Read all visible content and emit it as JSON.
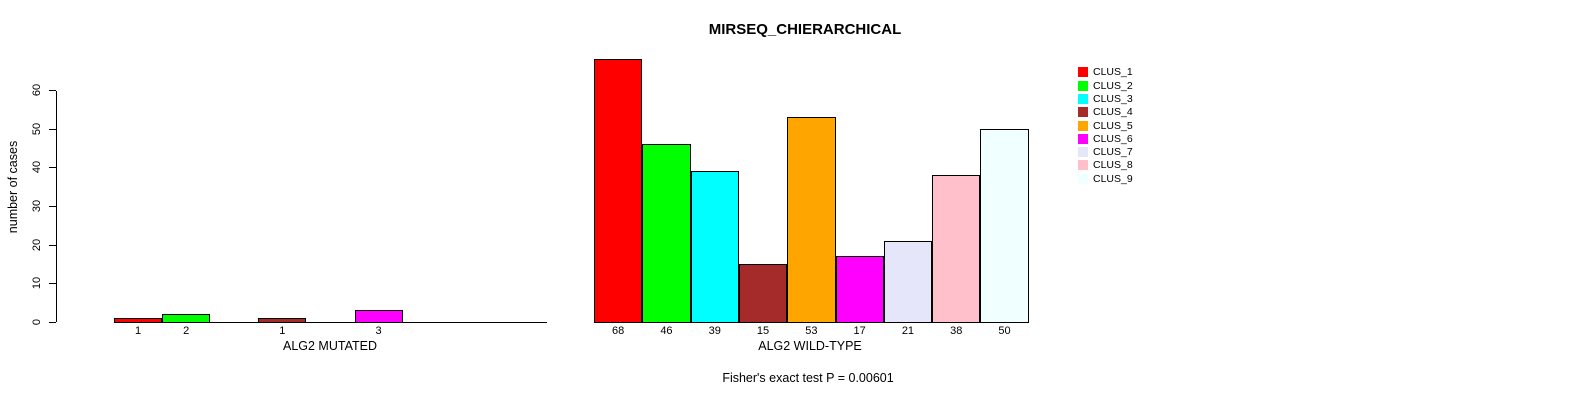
{
  "chart_data": {
    "type": "bar",
    "title": "MIRSEQ_CHIERARCHICAL",
    "ylabel": "number of cases",
    "annotation": "Fisher's exact test P = 0.00601",
    "yticks": [
      0,
      10,
      20,
      30,
      40,
      50,
      60
    ],
    "ylim": [
      0,
      68
    ],
    "grid": false,
    "background": "#FFFFFF",
    "text_color": "#000000",
    "categories": [
      "CLUS_1",
      "CLUS_2",
      "CLUS_3",
      "CLUS_4",
      "CLUS_5",
      "CLUS_6",
      "CLUS_7",
      "CLUS_8",
      "CLUS_9"
    ],
    "colors": [
      "#FF0000",
      "#00FF00",
      "#00FFFF",
      "#A52A2A",
      "#FFA500",
      "#FF00FF",
      "#E6E6FA",
      "#FFC0CB",
      "#F0FFFF"
    ],
    "panels": [
      {
        "xlabel": "ALG2 MUTATED",
        "values": [
          1,
          2,
          0,
          1,
          0,
          3,
          0,
          0,
          0
        ],
        "bar_labels": [
          "1",
          "2",
          "",
          "1",
          "",
          "3",
          "",
          "",
          ""
        ]
      },
      {
        "xlabel": "ALG2 WILD-TYPE",
        "values": [
          68,
          46,
          39,
          15,
          53,
          17,
          21,
          38,
          50
        ],
        "bar_labels": [
          "68",
          "46",
          "39",
          "15",
          "53",
          "17",
          "21",
          "38",
          "50"
        ]
      }
    ],
    "legend": {
      "position": "right",
      "entries": [
        {
          "label": "CLUS_1",
          "color": "#FF0000"
        },
        {
          "label": "CLUS_2",
          "color": "#00FF00"
        },
        {
          "label": "CLUS_3",
          "color": "#00FFFF"
        },
        {
          "label": "CLUS_4",
          "color": "#A52A2A"
        },
        {
          "label": "CLUS_5",
          "color": "#FFA500"
        },
        {
          "label": "CLUS_6",
          "color": "#FF00FF"
        },
        {
          "label": "CLUS_7",
          "color": "#E6E6FA"
        },
        {
          "label": "CLUS_8",
          "color": "#FFC0CB"
        },
        {
          "label": "CLUS_9",
          "color": "#F0FFFF"
        }
      ]
    }
  }
}
